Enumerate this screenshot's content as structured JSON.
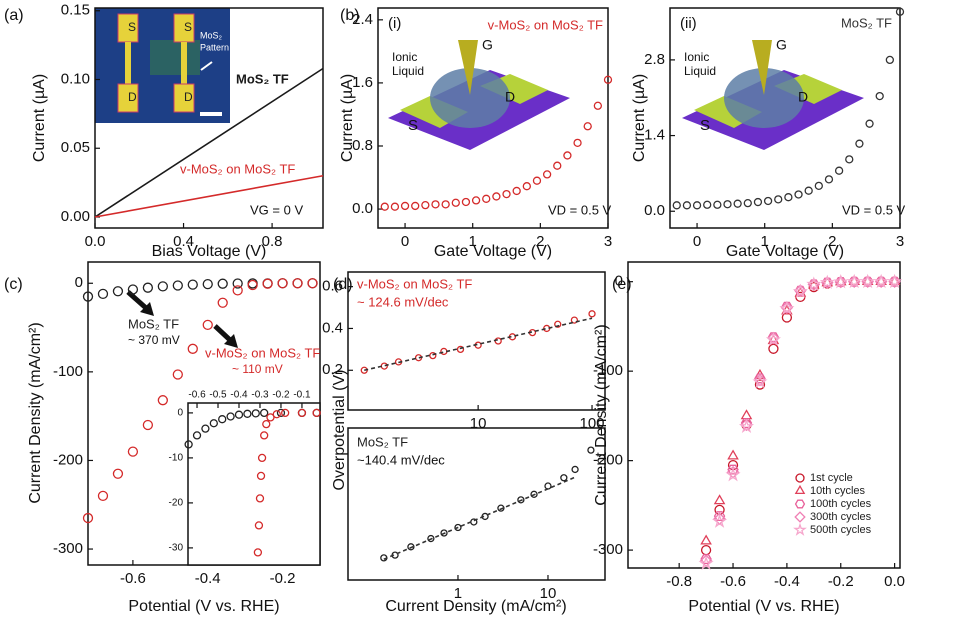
{
  "chart_data": [
    {
      "panel": "(a)",
      "type": "line",
      "xlabel": "Bias Voltage (V)",
      "ylabel": "Current (µA)",
      "xlim": [
        0,
        1.03
      ],
      "ylim": [
        -0.008,
        0.152
      ],
      "xticks": [
        {
          "value": 0,
          "label": "0.0"
        },
        {
          "value": 0.4,
          "label": "0.4"
        },
        {
          "value": 0.8,
          "label": "0.8"
        }
      ],
      "yticks": [
        {
          "value": 0,
          "label": "0.00"
        },
        {
          "value": 0.05,
          "label": "0.05"
        },
        {
          "value": 0.1,
          "label": "0.10"
        },
        {
          "value": 0.15,
          "label": "0.15"
        }
      ],
      "series": [
        {
          "name": "MoS₂ TF",
          "color": "#1a1a1a",
          "x": [
            0,
            1.03
          ],
          "values": [
            0,
            0.108
          ]
        },
        {
          "name": "v-MoS₂ on MoS₂ TF",
          "color": "#d42a2a",
          "x": [
            0,
            1.03
          ],
          "values": [
            0,
            0.03
          ]
        }
      ],
      "annotations": [
        "VG = 0 V",
        "S",
        "S",
        "D",
        "D",
        "MoS₂",
        "Pattern"
      ]
    },
    {
      "panel": "(b)",
      "type": "scatter",
      "xlabel": "Gate Voltage (V)",
      "ylabel": "Current (µA)",
      "xlim": [
        -0.4,
        3
      ],
      "ylim": [
        -0.24,
        2.55
      ],
      "xticks": [
        0,
        1,
        2,
        3
      ],
      "yticks": [
        {
          "value": 0,
          "label": "0.0"
        },
        {
          "value": 0.8,
          "label": "0.8"
        },
        {
          "value": 1.6,
          "label": "1.6"
        },
        {
          "value": 2.4,
          "label": "2.4"
        }
      ],
      "series": [
        {
          "name": "v-MoS₂ on MoS₂ TF",
          "color": "#d42a2a",
          "x": [
            -0.3,
            -0.15,
            0,
            0.15,
            0.3,
            0.45,
            0.6,
            0.75,
            0.9,
            1.05,
            1.2,
            1.35,
            1.5,
            1.65,
            1.8,
            1.95,
            2.1,
            2.25,
            2.4,
            2.55,
            2.7,
            2.85,
            3.0
          ],
          "values": [
            0.03,
            0.03,
            0.04,
            0.04,
            0.05,
            0.06,
            0.06,
            0.08,
            0.09,
            0.11,
            0.13,
            0.16,
            0.19,
            0.23,
            0.29,
            0.36,
            0.44,
            0.55,
            0.68,
            0.84,
            1.05,
            1.31,
            1.64
          ]
        }
      ],
      "annotations": [
        "(i)",
        "Ionic",
        "Liquid",
        "G",
        "D",
        "S",
        "VD = 0.5 V"
      ]
    },
    {
      "type": "scatter",
      "xlabel": "Gate Voltage (V)",
      "ylabel": "Current (µA)",
      "xlim": [
        -0.4,
        3
      ],
      "ylim": [
        -0.31,
        3.76
      ],
      "xticks": [
        0,
        1,
        2,
        3
      ],
      "yticks": [
        {
          "value": 0,
          "label": "0.0"
        },
        1.4,
        2.8
      ],
      "series": [
        {
          "name": "MoS₂ TF",
          "color": "#333333",
          "x": [
            -0.3,
            -0.15,
            0,
            0.15,
            0.3,
            0.45,
            0.6,
            0.75,
            0.9,
            1.05,
            1.2,
            1.35,
            1.5,
            1.65,
            1.8,
            1.95,
            2.1,
            2.25,
            2.4,
            2.55,
            2.7,
            2.85,
            3.0
          ],
          "values": [
            0.11,
            0.11,
            0.11,
            0.12,
            0.12,
            0.13,
            0.14,
            0.15,
            0.17,
            0.19,
            0.22,
            0.26,
            0.31,
            0.38,
            0.47,
            0.59,
            0.75,
            0.96,
            1.25,
            1.62,
            2.13,
            2.8,
            3.69
          ]
        }
      ],
      "annotations": [
        "(ii)",
        "Ionic",
        "Liquid",
        "G",
        "D",
        "S",
        "VD = 0.5 V"
      ]
    },
    {
      "panel": "(c)",
      "type": "scatter",
      "xlabel": "Potential (V vs. RHE)",
      "ylabel": "Current Density (mA/cm²)",
      "xlim": [
        -0.72,
        -0.1
      ],
      "ylim": [
        -318,
        24
      ],
      "xticks": [
        -0.6,
        -0.4,
        -0.2
      ],
      "yticks": [
        0,
        -100,
        -200,
        -300
      ],
      "series": [
        {
          "name": "MoS₂ TF",
          "color": "#222222",
          "x": [
            -0.72,
            -0.68,
            -0.64,
            -0.6,
            -0.56,
            -0.52,
            -0.48,
            -0.44,
            -0.4,
            -0.36,
            -0.32,
            -0.28,
            -0.24,
            -0.2,
            -0.16,
            -0.12
          ],
          "values": [
            -15,
            -12,
            -9,
            -7,
            -5,
            -3.5,
            -2.5,
            -1.5,
            -1,
            -0.5,
            -0.3,
            -0.2,
            -0.1,
            0,
            0,
            0
          ]
        },
        {
          "name": "v-MoS₂ on MoS₂ TF",
          "color": "#d42a2a",
          "x": [
            -0.72,
            -0.68,
            -0.64,
            -0.6,
            -0.56,
            -0.52,
            -0.48,
            -0.44,
            -0.4,
            -0.36,
            -0.32,
            -0.28,
            -0.24,
            -0.2,
            -0.16,
            -0.12
          ],
          "values": [
            -265,
            -240,
            -215,
            -190,
            -160,
            -132,
            -103,
            -74,
            -47,
            -22,
            -8,
            -2,
            -0.5,
            0,
            0,
            0
          ]
        }
      ],
      "annotations": [
        "~ 370 mV",
        "~ 110 mV"
      ]
    },
    {
      "type": "scatter",
      "xaxis": "top",
      "xlim": [
        -0.643,
        -0.014
      ],
      "ylim": [
        -33.8,
        2.2
      ],
      "xticks": [
        -0.6,
        -0.5,
        -0.4,
        -0.3,
        -0.2,
        -0.1
      ],
      "yticks": [
        0,
        -10,
        -20,
        -30
      ],
      "series": [
        {
          "color": "#222222",
          "x": [
            -0.64,
            -0.6,
            -0.56,
            -0.52,
            -0.48,
            -0.44,
            -0.4,
            -0.36,
            -0.32,
            -0.28,
            -0.2,
            -0.1,
            -0.03
          ],
          "values": [
            -7,
            -5,
            -3.5,
            -2.3,
            -1.4,
            -0.8,
            -0.4,
            -0.2,
            -0.1,
            0,
            0,
            0,
            0
          ]
        },
        {
          "color": "#d42a2a",
          "x": [
            -0.31,
            -0.305,
            -0.3,
            -0.295,
            -0.29,
            -0.28,
            -0.27,
            -0.25,
            -0.22,
            -0.18,
            -0.1,
            -0.03
          ],
          "values": [
            -31,
            -25,
            -19,
            -14,
            -10,
            -5,
            -2.5,
            -1,
            -0.3,
            0,
            0,
            0
          ]
        }
      ]
    },
    {
      "panel": "(d)",
      "type": "scatter",
      "xscale": "log",
      "ylabel": "Overpotential (V)",
      "xlim": [
        0.72,
        130
      ],
      "ylim": [
        0.01,
        0.67
      ],
      "xticks": [
        10,
        100
      ],
      "yticks": [
        0.2,
        0.4,
        0.6
      ],
      "series": [
        {
          "name": "v-MoS₂ on MoS₂ TF",
          "color": "#d42a2a",
          "x": [
            1,
            1.5,
            2,
            3,
            4,
            5,
            7,
            10,
            15,
            20,
            30,
            40,
            50,
            70,
            100
          ],
          "values": [
            0.2,
            0.22,
            0.24,
            0.26,
            0.27,
            0.29,
            0.3,
            0.32,
            0.34,
            0.36,
            0.38,
            0.4,
            0.42,
            0.44,
            0.47
          ]
        },
        {
          "type": "line",
          "style": "dashed",
          "color": "#333333",
          "x": [
            1,
            100
          ],
          "values": [
            0.2,
            0.449
          ]
        }
      ],
      "annotations": [
        "~ 124.6 mV/dec"
      ]
    },
    {
      "type": "scatter",
      "xscale": "log",
      "xlabel": "Current Density (mA/cm²)",
      "xlim": [
        0.06,
        43
      ],
      "ylim": [
        0.25,
        0.8
      ],
      "xticks": [
        1,
        10
      ],
      "series": [
        {
          "name": "MoS₂ TF",
          "color": "#222222",
          "x": [
            0.15,
            0.2,
            0.3,
            0.5,
            0.7,
            1,
            1.5,
            2,
            3,
            5,
            7,
            10,
            15,
            20,
            30
          ],
          "values": [
            0.33,
            0.34,
            0.37,
            0.4,
            0.42,
            0.44,
            0.46,
            0.48,
            0.51,
            0.54,
            0.56,
            0.59,
            0.62,
            0.65,
            0.72
          ]
        },
        {
          "type": "line",
          "style": "dashed",
          "color": "#333333",
          "x": [
            0.15,
            20
          ],
          "values": [
            0.325,
            0.622
          ]
        }
      ],
      "annotations": [
        "~140.4 mV/dec"
      ]
    },
    {
      "panel": "(e)",
      "type": "scatter",
      "xlabel": "Potential (V vs. RHE)",
      "ylabel": "Current Density (mA/cm²)",
      "xlim": [
        -0.99,
        0.02
      ],
      "ylim": [
        -320,
        22
      ],
      "legend": "lower right",
      "xticks": [
        -0.8,
        -0.6,
        -0.4,
        -0.2,
        {
          "value": 0,
          "label": "0.0"
        }
      ],
      "yticks": [
        0,
        -100,
        -200,
        -300
      ],
      "series": [
        {
          "name": "1st cycle",
          "color": "#c8182a",
          "marker": "circle",
          "x": [
            -0.7,
            -0.65,
            -0.6,
            -0.55,
            -0.5,
            -0.45,
            -0.4,
            -0.35,
            -0.3,
            -0.25,
            -0.2,
            -0.15,
            -0.1,
            -0.05,
            0
          ],
          "values": [
            -300,
            -255,
            -205,
            -160,
            -115,
            -75,
            -40,
            -17,
            -6,
            -2,
            -0.5,
            0,
            0,
            0,
            0
          ]
        },
        {
          "name": "10th cycles",
          "color": "#e0405a",
          "marker": "triangle",
          "x": [
            -0.7,
            -0.65,
            -0.6,
            -0.55,
            -0.5,
            -0.45,
            -0.4,
            -0.35,
            -0.3,
            -0.25,
            -0.2,
            -0.15,
            -0.1,
            -0.05,
            0
          ],
          "values": [
            -290,
            -245,
            -195,
            -150,
            -105,
            -66,
            -33,
            -13,
            -4,
            -1.5,
            -0.4,
            0,
            0,
            0,
            0
          ]
        },
        {
          "name": "100th cycles",
          "color": "#e8609a",
          "marker": "hexagon",
          "x": [
            -0.7,
            -0.65,
            -0.6,
            -0.55,
            -0.5,
            -0.45,
            -0.4,
            -0.35,
            -0.3,
            -0.25,
            -0.2,
            -0.15,
            -0.1,
            -0.05,
            0
          ],
          "values": [
            -310,
            -262,
            -210,
            -158,
            -108,
            -62,
            -28,
            -10,
            -3,
            -1,
            -0.3,
            0,
            0,
            0,
            0
          ]
        },
        {
          "name": "300th cycles",
          "color": "#ef7fb4",
          "marker": "diamond",
          "x": [
            -0.7,
            -0.65,
            -0.6,
            -0.55,
            -0.5,
            -0.45,
            -0.4,
            -0.35,
            -0.3,
            -0.25,
            -0.2,
            -0.15,
            -0.1,
            -0.05,
            0
          ],
          "values": [
            -312,
            -265,
            -213,
            -160,
            -110,
            -63,
            -29,
            -10,
            -3,
            -1,
            -0.3,
            0,
            0,
            0,
            0
          ]
        },
        {
          "name": "500th cycles",
          "color": "#f6a6cc",
          "marker": "star",
          "x": [
            -0.7,
            -0.65,
            -0.6,
            -0.55,
            -0.5,
            -0.45,
            -0.4,
            -0.35,
            -0.3,
            -0.25,
            -0.2,
            -0.15,
            -0.1,
            -0.05,
            0
          ],
          "values": [
            -315,
            -268,
            -216,
            -162,
            -112,
            -65,
            -30,
            -11,
            -3,
            -1,
            -0.3,
            0,
            0,
            0,
            0
          ]
        }
      ]
    }
  ]
}
